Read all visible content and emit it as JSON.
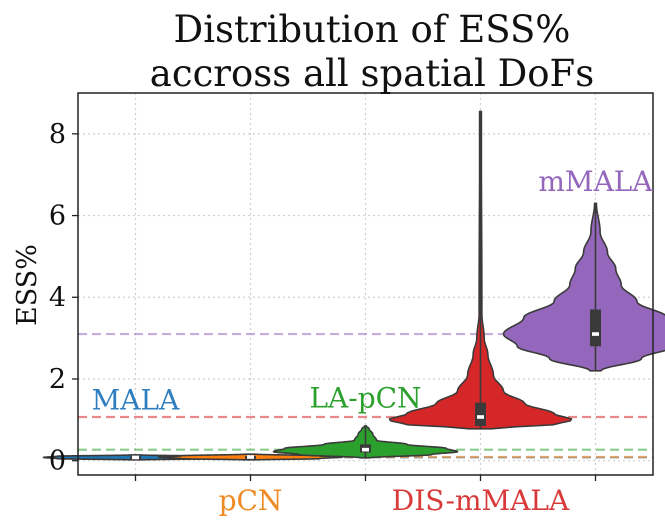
{
  "chart_data": {
    "type": "violin",
    "title_lines": [
      "Distribution of ESS%",
      "accross all spatial DoFs"
    ],
    "xlabel": "",
    "ylabel": "ESS%",
    "ylim": [
      -0.35,
      9.0
    ],
    "yticks": [
      0,
      2,
      4,
      6,
      8
    ],
    "ytick_labels": [
      "0",
      "2",
      "4",
      "6",
      "8"
    ],
    "grid": true,
    "series": [
      {
        "name": "MALA",
        "label_text": "MALA",
        "color": "#1f77b4",
        "label_color": "#2f7fc0",
        "label_position": "above",
        "label_y": 1.25,
        "min": 0.02,
        "max": 0.14,
        "q1": 0.05,
        "median": 0.08,
        "q3": 0.11,
        "mean": 0.08,
        "profile": [
          [
            0.02,
            0.06
          ],
          [
            0.05,
            0.85
          ],
          [
            0.08,
            1.0
          ],
          [
            0.11,
            0.85
          ],
          [
            0.14,
            0.06
          ]
        ]
      },
      {
        "name": "pCN",
        "label_text": "pCN",
        "color": "#ff7f0e",
        "label_color": "#f08a24",
        "label_position": "below",
        "label_y": null,
        "min": 0.02,
        "max": 0.16,
        "q1": 0.05,
        "median": 0.09,
        "q3": 0.12,
        "mean": 0.09,
        "profile": [
          [
            0.02,
            0.06
          ],
          [
            0.05,
            0.75
          ],
          [
            0.09,
            1.0
          ],
          [
            0.12,
            0.75
          ],
          [
            0.16,
            0.06
          ]
        ]
      },
      {
        "name": "LA-pCN",
        "label_text": "LA-pCN",
        "color": "#2ca02c",
        "label_color": "#2ca02c",
        "label_position": "above",
        "label_y": 1.3,
        "min": 0.07,
        "max": 0.85,
        "q1": 0.2,
        "median": 0.27,
        "q3": 0.4,
        "mean": 0.27,
        "profile": [
          [
            0.07,
            0.05
          ],
          [
            0.15,
            0.72
          ],
          [
            0.22,
            1.0
          ],
          [
            0.3,
            0.88
          ],
          [
            0.4,
            0.45
          ],
          [
            0.5,
            0.12
          ],
          [
            0.65,
            0.08
          ],
          [
            0.78,
            0.04
          ],
          [
            0.85,
            0.01
          ]
        ]
      },
      {
        "name": "DIS-mMALA",
        "label_text": "DIS-mMALA",
        "color": "#d62728",
        "label_color": "#d83a3a",
        "label_position": "below",
        "label_y": null,
        "min": 0.78,
        "max": 8.55,
        "q1": 0.85,
        "median": 1.07,
        "q3": 1.42,
        "mean": 1.07,
        "profile": [
          [
            0.78,
            0.12
          ],
          [
            0.9,
            0.85
          ],
          [
            1.0,
            1.0
          ],
          [
            1.15,
            0.8
          ],
          [
            1.4,
            0.48
          ],
          [
            1.7,
            0.25
          ],
          [
            2.1,
            0.14
          ],
          [
            2.6,
            0.08
          ],
          [
            3.0,
            0.04
          ],
          [
            3.6,
            0.015
          ],
          [
            8.55,
            0.008
          ]
        ]
      },
      {
        "name": "mMALA",
        "label_text": "mMALA",
        "color": "#9467bd",
        "label_color": "#9467bd",
        "label_position": "above",
        "label_y": 6.6,
        "min": 2.2,
        "max": 6.3,
        "q1": 2.8,
        "median": 3.1,
        "q3": 3.7,
        "mean": 3.1,
        "profile": [
          [
            2.2,
            0.06
          ],
          [
            2.5,
            0.5
          ],
          [
            2.8,
            0.85
          ],
          [
            3.1,
            1.0
          ],
          [
            3.5,
            0.78
          ],
          [
            3.9,
            0.45
          ],
          [
            4.3,
            0.28
          ],
          [
            4.7,
            0.22
          ],
          [
            5.1,
            0.13
          ],
          [
            5.6,
            0.05
          ],
          [
            6.3,
            0.01
          ]
        ]
      }
    ]
  }
}
